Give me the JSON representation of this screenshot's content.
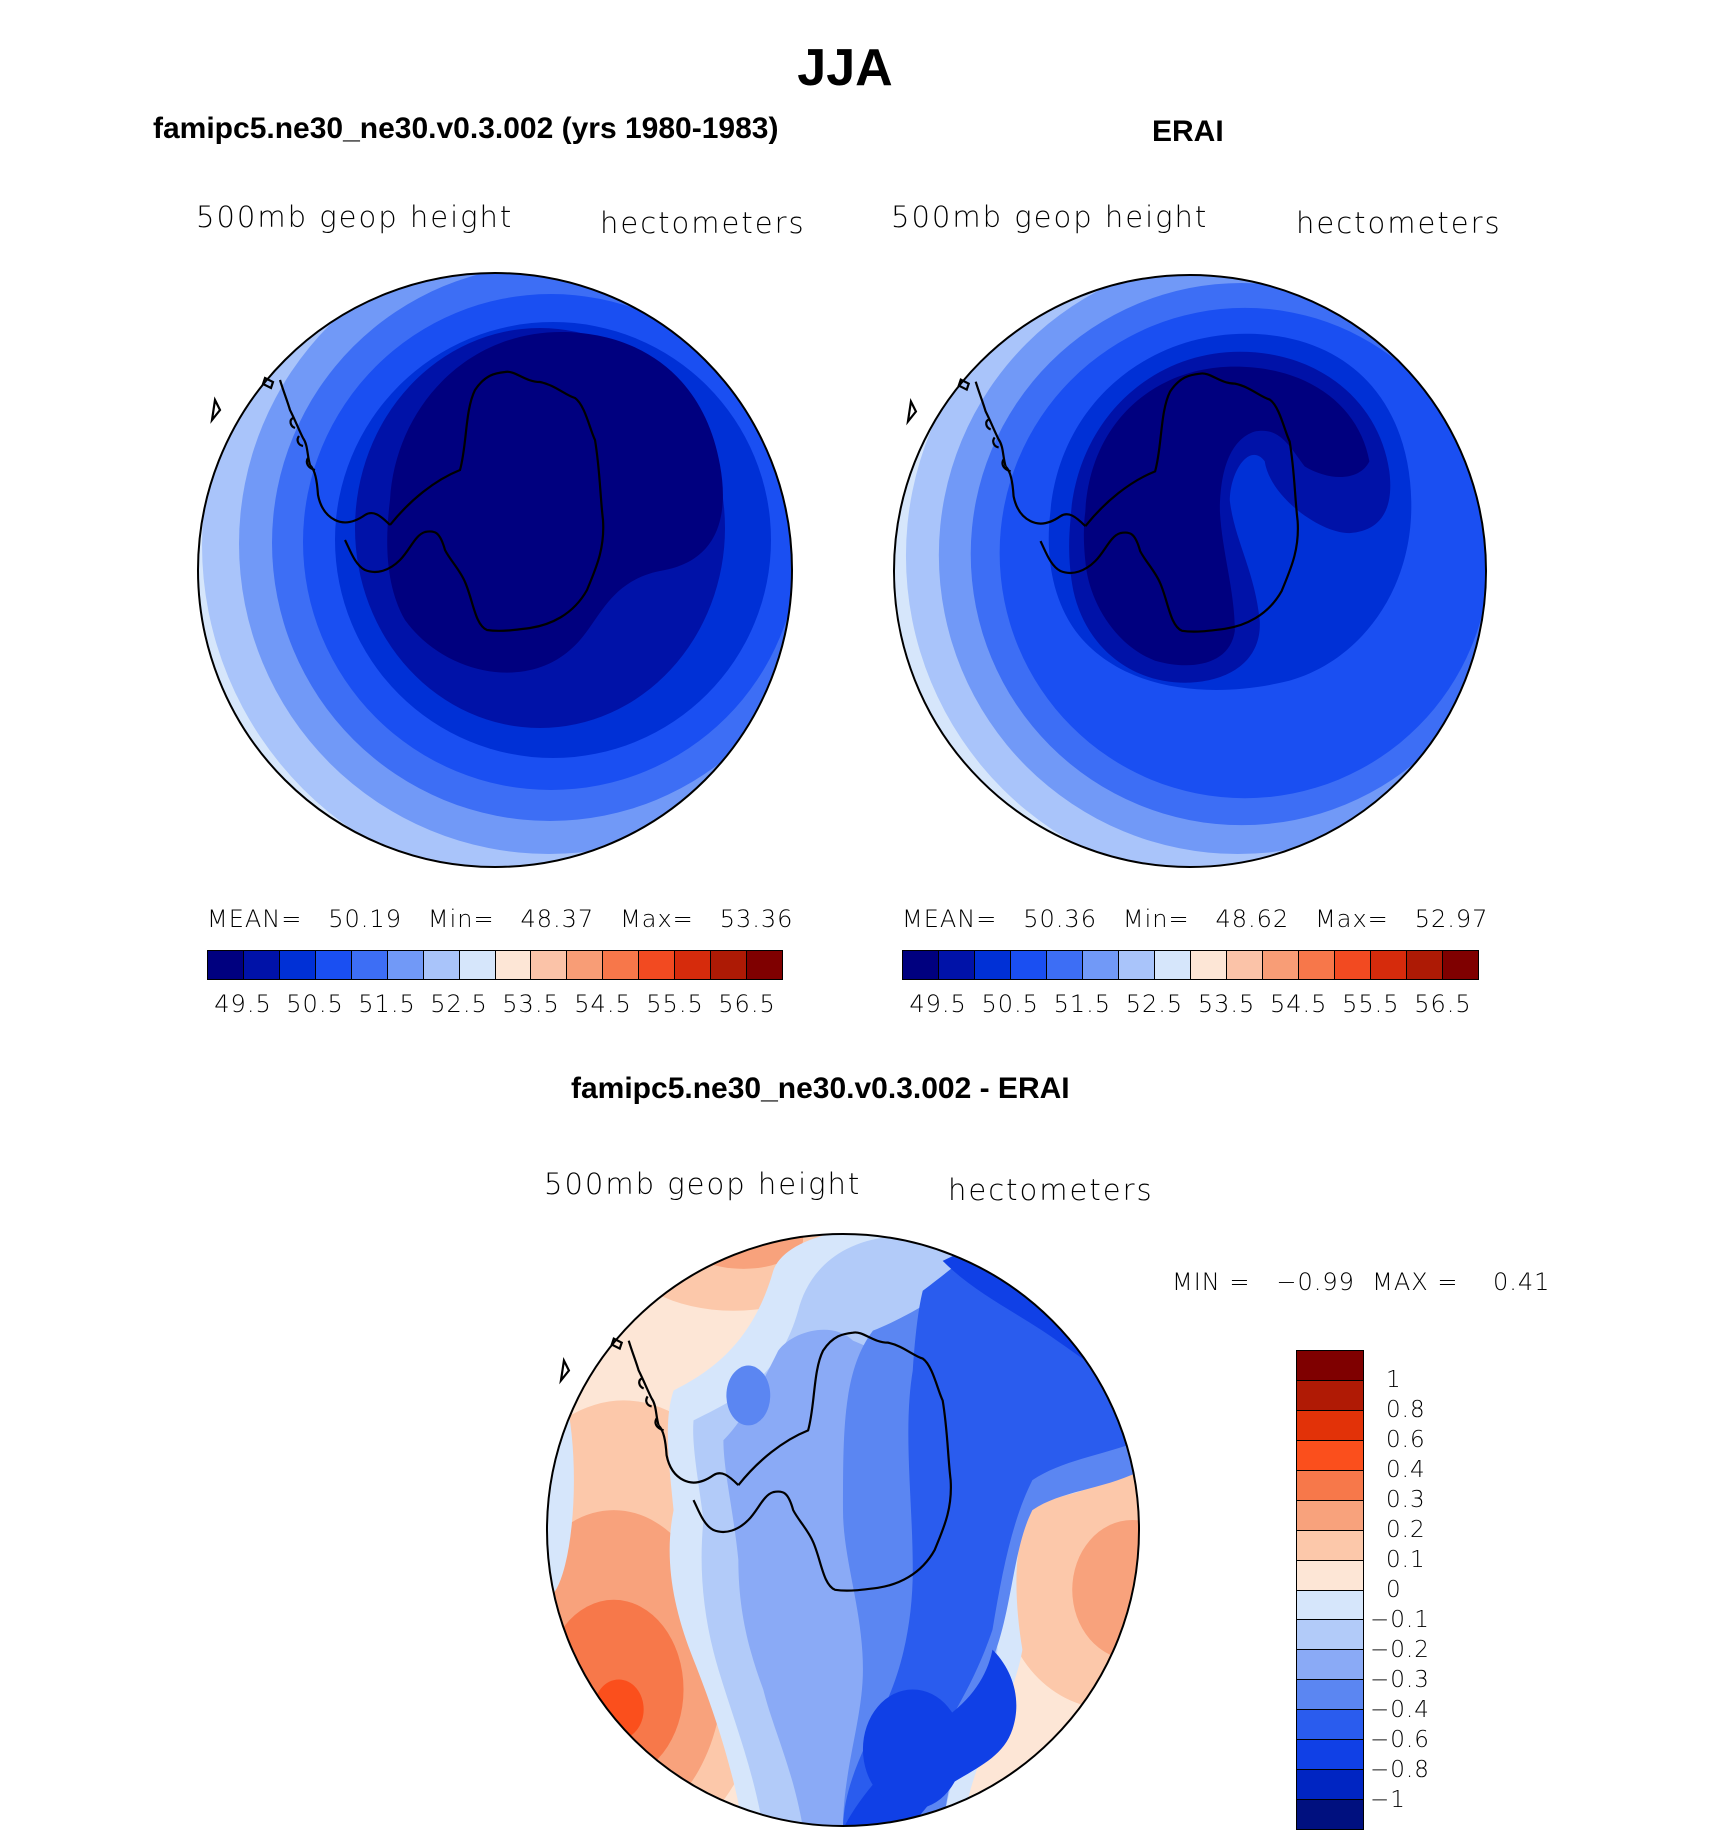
{
  "title": "JJA",
  "panels": {
    "model": {
      "title": "famipc5.ne30_ne30.v0.3.002 (yrs 1980-1983)",
      "variable": "500mb geop height",
      "units": "hectometers",
      "stats": {
        "mean_label": "MEAN=",
        "mean": "50.19",
        "min_label": "Min=",
        "min": "48.37",
        "max_label": "Max=",
        "max": "53.36"
      }
    },
    "obs": {
      "title": "ERAI",
      "variable": "500mb geop height",
      "units": "hectometers",
      "stats": {
        "mean_label": "MEAN=",
        "mean": "50.36",
        "min_label": "Min=",
        "min": "48.62",
        "max_label": "Max=",
        "max": "52.97"
      }
    },
    "diff": {
      "title": "famipc5.ne30_ne30.v0.3.002 - ERAI",
      "variable": "500mb geop height",
      "units": "hectometers",
      "minmax_text": "MIN =   −0.99  MAX =    0.41"
    }
  },
  "colorbar_main": {
    "colors": [
      "#00007f",
      "#0012a8",
      "#0030d6",
      "#1a4ff2",
      "#3d6ef5",
      "#7199f7",
      "#a9c4fa",
      "#d6e6fb",
      "#fde6d6",
      "#fbc3a8",
      "#f89d76",
      "#f7774a",
      "#f24a21",
      "#d62b0c",
      "#ad1a05",
      "#7f0000"
    ],
    "ticks": [
      "49.5",
      "50.5",
      "51.5",
      "52.5",
      "53.5",
      "54.5",
      "55.5",
      "56.5"
    ]
  },
  "colorbar_diff": {
    "colors": [
      "#7f0000",
      "#b01a05",
      "#e23208",
      "#fb4f1c",
      "#f7784a",
      "#f8a27c",
      "#fcc8aa",
      "#fde6d6",
      "#d6e6fb",
      "#b2cbf9",
      "#8aaaf6",
      "#5b86f2",
      "#2a5cee",
      "#1040e6",
      "#0025c2",
      "#00107f"
    ],
    "ticks": [
      "1",
      "0.8",
      "0.6",
      "0.4",
      "0.3",
      "0.2",
      "0.1",
      "0",
      "−0.1",
      "−0.2",
      "−0.3",
      "−0.4",
      "−0.6",
      "−0.8",
      "−1"
    ]
  }
}
